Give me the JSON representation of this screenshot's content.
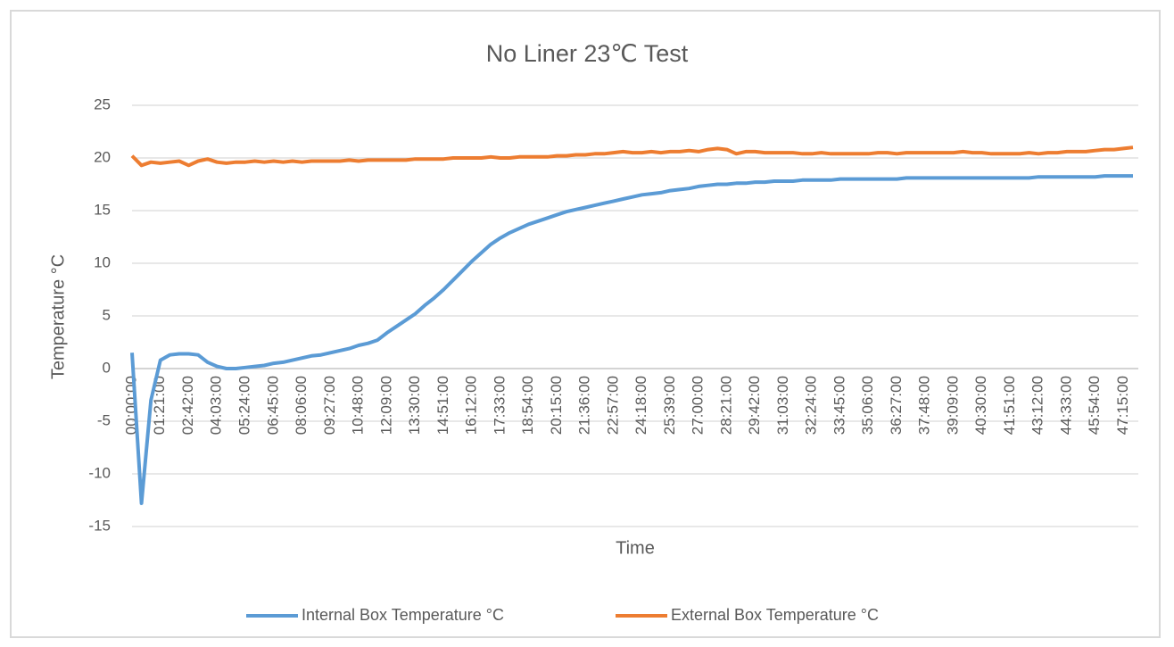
{
  "chart_data": {
    "type": "line",
    "title": "No Liner 23℃ Test",
    "x_label": "Time",
    "y_label": "Temperature °C",
    "categories": [
      "00:00:00",
      null,
      null,
      "01:21:00",
      null,
      null,
      "02:42:00",
      null,
      null,
      "04:03:00",
      null,
      null,
      "05:24:00",
      null,
      null,
      "06:45:00",
      null,
      null,
      "08:06:00",
      null,
      null,
      "09:27:00",
      null,
      null,
      "10:48:00",
      null,
      null,
      "12:09:00",
      null,
      null,
      "13:30:00",
      null,
      null,
      "14:51:00",
      null,
      null,
      "16:12:00",
      null,
      null,
      "17:33:00",
      null,
      null,
      "18:54:00",
      null,
      null,
      "20:15:00",
      null,
      null,
      "21:36:00",
      null,
      null,
      "22:57:00",
      null,
      null,
      "24:18:00",
      null,
      null,
      "25:39:00",
      null,
      null,
      "27:00:00",
      null,
      null,
      "28:21:00",
      null,
      null,
      "29:42:00",
      null,
      null,
      "31:03:00",
      null,
      null,
      "32:24:00",
      null,
      null,
      "33:45:00",
      null,
      null,
      "35:06:00",
      null,
      null,
      "36:27:00",
      null,
      null,
      "37:48:00",
      null,
      null,
      "39:09:00",
      null,
      null,
      "40:30:00",
      null,
      null,
      "41:51:00",
      null,
      null,
      "43:12:00",
      null,
      null,
      "44:33:00",
      null,
      null,
      "45:54:00",
      null,
      null,
      "47:15:00",
      null
    ],
    "series": [
      {
        "name": "Internal Box Temperature °C",
        "color": "#5b9bd5",
        "values": [
          1.5,
          -12.8,
          -3,
          0.8,
          1.3,
          1.4,
          1.4,
          1.3,
          0.6,
          0.2,
          0.0,
          0.0,
          0.1,
          0.2,
          0.3,
          0.5,
          0.6,
          0.8,
          1.0,
          1.2,
          1.3,
          1.5,
          1.7,
          1.9,
          2.2,
          2.4,
          2.7,
          3.4,
          4.0,
          4.6,
          5.2,
          6.0,
          6.7,
          7.5,
          8.4,
          9.3,
          10.2,
          11.0,
          11.8,
          12.4,
          12.9,
          13.3,
          13.7,
          14.0,
          14.3,
          14.6,
          14.9,
          15.1,
          15.3,
          15.5,
          15.7,
          15.9,
          16.1,
          16.3,
          16.5,
          16.6,
          16.7,
          16.9,
          17.0,
          17.1,
          17.3,
          17.4,
          17.5,
          17.5,
          17.6,
          17.6,
          17.7,
          17.7,
          17.8,
          17.8,
          17.8,
          17.9,
          17.9,
          17.9,
          17.9,
          18.0,
          18.0,
          18.0,
          18.0,
          18.0,
          18.0,
          18.0,
          18.1,
          18.1,
          18.1,
          18.1,
          18.1,
          18.1,
          18.1,
          18.1,
          18.1,
          18.1,
          18.1,
          18.1,
          18.1,
          18.1,
          18.2,
          18.2,
          18.2,
          18.2,
          18.2,
          18.2,
          18.2,
          18.3,
          18.3,
          18.3,
          18.3
        ]
      },
      {
        "name": "External Box Temperature °C",
        "color": "#ed7d31",
        "values": [
          20.2,
          19.3,
          19.6,
          19.5,
          19.6,
          19.7,
          19.3,
          19.7,
          19.9,
          19.6,
          19.5,
          19.6,
          19.6,
          19.7,
          19.6,
          19.7,
          19.6,
          19.7,
          19.6,
          19.7,
          19.7,
          19.7,
          19.7,
          19.8,
          19.7,
          19.8,
          19.8,
          19.8,
          19.8,
          19.8,
          19.9,
          19.9,
          19.9,
          19.9,
          20.0,
          20.0,
          20.0,
          20.0,
          20.1,
          20.0,
          20.0,
          20.1,
          20.1,
          20.1,
          20.1,
          20.2,
          20.2,
          20.3,
          20.3,
          20.4,
          20.4,
          20.5,
          20.6,
          20.5,
          20.5,
          20.6,
          20.5,
          20.6,
          20.6,
          20.7,
          20.6,
          20.8,
          20.9,
          20.8,
          20.4,
          20.6,
          20.6,
          20.5,
          20.5,
          20.5,
          20.5,
          20.4,
          20.4,
          20.5,
          20.4,
          20.4,
          20.4,
          20.4,
          20.4,
          20.5,
          20.5,
          20.4,
          20.5,
          20.5,
          20.5,
          20.5,
          20.5,
          20.5,
          20.6,
          20.5,
          20.5,
          20.4,
          20.4,
          20.4,
          20.4,
          20.5,
          20.4,
          20.5,
          20.5,
          20.6,
          20.6,
          20.6,
          20.7,
          20.8,
          20.8,
          20.9,
          21.0
        ]
      }
    ],
    "ylim": [
      -15,
      25
    ],
    "yticks": [
      -15,
      -10,
      -5,
      0,
      5,
      10,
      15,
      20,
      25
    ],
    "grid": true,
    "legend": "bottom"
  }
}
